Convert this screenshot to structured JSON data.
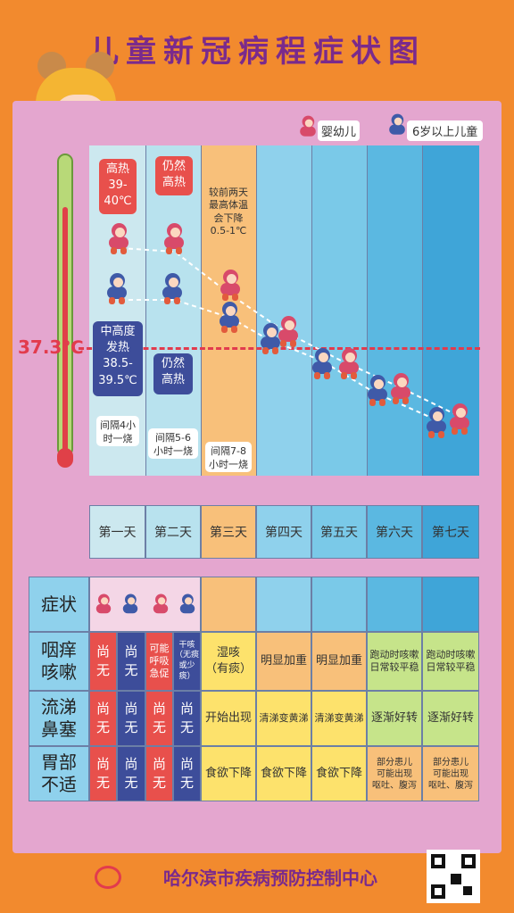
{
  "title": "儿童新冠病程症状图",
  "legend": {
    "infant": "婴幼儿",
    "older": "6岁以上儿童"
  },
  "thermometer": {
    "threshold_label": "37.3℃"
  },
  "fever_notes": {
    "high_fever": "高热\n39-\n40℃",
    "still_high": "仍然\n高热",
    "moderate": "中高度\n发热\n38.5-\n39.5℃",
    "still_high2": "仍然\n高热",
    "day3_note": "较前两天\n最高体温\n会下降\n0.5-1℃",
    "interval1": "间隔4小\n时一烧",
    "interval2": "间隔5-6\n小时一烧",
    "interval3": "间隔7-8\n小时一烧"
  },
  "days": [
    "第一天",
    "第二天",
    "第三天",
    "第四天",
    "第五天",
    "第六天",
    "第七天"
  ],
  "table": {
    "header": "症状",
    "rows": [
      {
        "name": "咽痒\n咳嗽",
        "cells": [
          "尚\n无",
          "尚\n无",
          "可能\n呼吸\n急促",
          "干咳\n（无痰\n或少\n痰）",
          "湿咳\n（有痰）",
          "明显加重",
          "明显加重",
          "跑动时咳嗽\n日常较平稳",
          "跑动时咳嗽\n日常较平稳"
        ]
      },
      {
        "name": "流涕\n鼻塞",
        "cells": [
          "尚\n无",
          "尚\n无",
          "尚\n无",
          "尚\n无",
          "开始出现",
          "清涕变黄涕",
          "清涕变黄涕",
          "逐渐好转",
          "逐渐好转"
        ]
      },
      {
        "name": "胃部\n不适",
        "cells": [
          "尚\n无",
          "尚\n无",
          "尚\n无",
          "尚\n无",
          "食欲下降",
          "食欲下降",
          "食欲下降",
          "部分患儿\n可能出现\n呕吐、腹泻",
          "部分患儿\n可能出现\n呕吐、腹泻"
        ]
      }
    ]
  },
  "footer": "哈尔滨市疾病预防控制中心",
  "colors": {
    "bg": "#f28a2e",
    "panel": "#e4a6cf",
    "red": "#e8504c",
    "navy": "#3d4d9a"
  }
}
